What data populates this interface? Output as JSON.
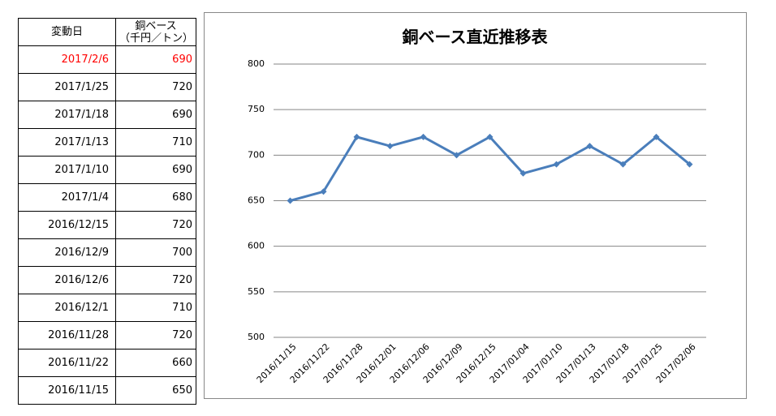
{
  "table": {
    "header": [
      [
        "変動日"
      ],
      [
        "銅ベース",
        "（千円／トン）"
      ]
    ],
    "rows": [
      [
        "2017/2/6",
        690
      ],
      [
        "2017/1/25",
        720
      ],
      [
        "2017/1/18",
        690
      ],
      [
        "2017/1/13",
        710
      ],
      [
        "2017/1/10",
        690
      ],
      [
        "2017/1/4",
        680
      ],
      [
        "2016/12/15",
        720
      ],
      [
        "2016/12/9",
        700
      ],
      [
        "2016/12/6",
        720
      ],
      [
        "2016/12/1",
        710
      ],
      [
        "2016/11/28",
        720
      ],
      [
        "2016/11/22",
        660
      ],
      [
        "2016/11/15",
        650
      ]
    ]
  },
  "chart_data": {
    "type": "line",
    "title": "銅ベース直近推移表",
    "categories": [
      "2016/11/15",
      "2016/11/22",
      "2016/11/28",
      "2016/12/01",
      "2016/12/06",
      "2016/12/09",
      "2016/12/15",
      "2017/01/04",
      "2017/01/10",
      "2017/01/13",
      "2017/01/18",
      "2017/01/25",
      "2017/02/06"
    ],
    "values": [
      650,
      660,
      720,
      710,
      720,
      700,
      720,
      680,
      690,
      710,
      690,
      720,
      690
    ],
    "color": "#4a7ebb",
    "ylim": [
      500,
      800
    ],
    "yticks": [
      500,
      550,
      600,
      650,
      700,
      750,
      800
    ],
    "grid": true
  }
}
